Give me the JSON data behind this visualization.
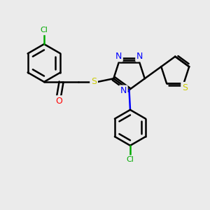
{
  "background_color": "#ebebeb",
  "bond_color": "#000000",
  "bond_width": 1.8,
  "atom_colors": {
    "N": "#0000ff",
    "O": "#ff0000",
    "S_thio": "#cccc00",
    "S_sulfanyl": "#cccc00",
    "Cl": "#00aa00",
    "C": "#000000"
  },
  "fig_width": 3.0,
  "fig_height": 3.0,
  "dpi": 100,
  "xlim": [
    0,
    10
  ],
  "ylim": [
    0,
    10
  ]
}
